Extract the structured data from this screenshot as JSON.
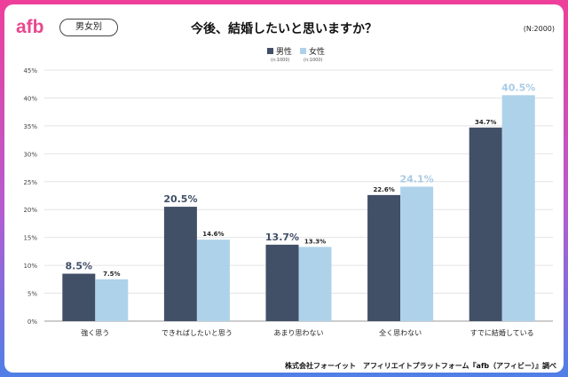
{
  "brand": {
    "logo_text": "afb"
  },
  "header": {
    "segment_label": "男女別",
    "title": "今後、結婚したいと思いますか？",
    "sample_size": "(N:2000)"
  },
  "legend": [
    {
      "name": "男性",
      "n": "(n:1000)",
      "color": "#414f67"
    },
    {
      "name": "女性",
      "n": "(n:1000)",
      "color": "#aed2ea"
    }
  ],
  "footer": {
    "source": "株式会社フォーイット　アフィリエイトプラットフォーム『afb（アフィビー）』調べ"
  },
  "colors": {
    "male": "#414f67",
    "female": "#aed2ea",
    "female_label": "#a9cbe6",
    "frame_top": "#ee3f9a",
    "frame_bottom": "#4f7fe6"
  },
  "chart_data": {
    "type": "bar",
    "title": "今後、結婚したいと思いますか？",
    "categories": [
      "強く思う",
      "できればしたいと思う",
      "あまり思わない",
      "全く思わない",
      "すでに結婚している"
    ],
    "series": [
      {
        "name": "男性",
        "values": [
          8.5,
          20.5,
          13.7,
          22.6,
          34.7
        ],
        "labels": [
          "8.5%",
          "20.5%",
          "13.7%",
          "22.6%",
          "34.7%"
        ]
      },
      {
        "name": "女性",
        "values": [
          7.5,
          14.6,
          13.3,
          24.1,
          40.5
        ],
        "labels": [
          "7.5%",
          "14.6%",
          "13.3%",
          "24.1%",
          "40.5%"
        ]
      }
    ],
    "highlighted_labels": {
      "男性": [
        0,
        1,
        2
      ],
      "女性": [
        3,
        4
      ]
    },
    "ylim": [
      0,
      45
    ],
    "yticks": [
      "0%",
      "5%",
      "10%",
      "15%",
      "20%",
      "25%",
      "30%",
      "35%",
      "40%",
      "45%"
    ],
    "ytick_values": [
      0,
      5,
      10,
      15,
      20,
      25,
      30,
      35,
      40,
      45
    ],
    "grid": true,
    "legend_position": "top-center"
  }
}
